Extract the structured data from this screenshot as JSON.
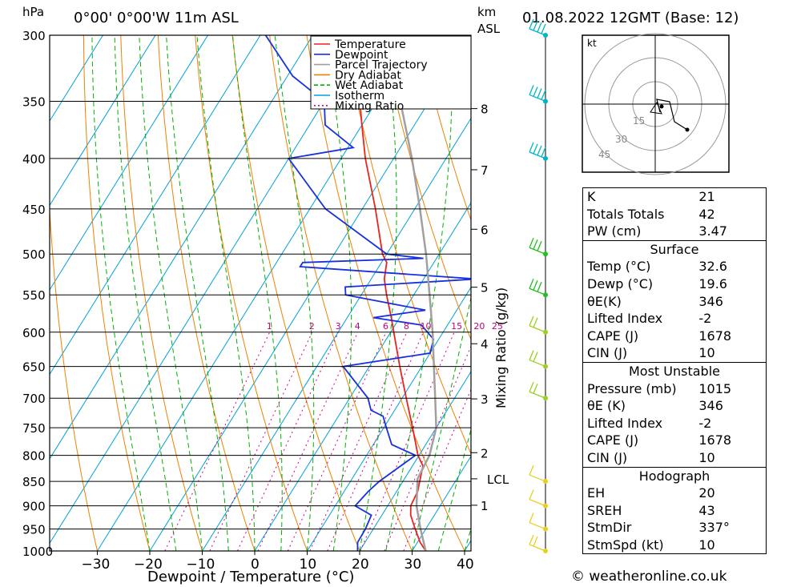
{
  "header": {
    "left_title": "0°00' 0°00'W 11m ASL",
    "right_title": "01.08.2022 12GMT (Base: 12)",
    "pressure_unit": "hPa",
    "height_unit": "km",
    "height_ref": "ASL"
  },
  "chart_data": {
    "type": "skew-t",
    "title": "0°00' 0°00'W 11m ASL",
    "xlabel": "Dewpoint / Temperature (°C)",
    "ylabel": "hPa",
    "right_ylabel": "Mixing Ratio (g/kg)",
    "xlim": [
      -40,
      40
    ],
    "pressure_levels": [
      300,
      350,
      400,
      450,
      500,
      550,
      600,
      650,
      700,
      750,
      800,
      850,
      900,
      950,
      1000
    ],
    "x_ticks": [
      -30,
      -20,
      -10,
      0,
      10,
      20,
      30,
      40
    ],
    "km_ticks": [
      {
        "km": 1,
        "label": "1"
      },
      {
        "km": 2,
        "label": "2"
      },
      {
        "km": 3,
        "label": "3"
      },
      {
        "km": 4,
        "label": "4"
      },
      {
        "km": 5,
        "label": "5"
      },
      {
        "km": 6,
        "label": "6"
      },
      {
        "km": 7,
        "label": "7"
      },
      {
        "km": 8,
        "label": "8"
      }
    ],
    "lcl_label": "LCL",
    "lcl_pressure": 845,
    "mixing_ratio_labels": [
      "1",
      "2",
      "3",
      "4",
      "6",
      "8",
      "10",
      "15",
      "20",
      "25"
    ],
    "legend": [
      {
        "name": "Temperature",
        "color": "#e8241c"
      },
      {
        "name": "Dewpoint",
        "color": "#1830e0"
      },
      {
        "name": "Parcel Trajectory",
        "color": "#a0a0a0"
      },
      {
        "name": "Dry Adiabat",
        "color": "#f08000"
      },
      {
        "name": "Wet Adiabat",
        "color": "#00b000"
      },
      {
        "name": "Isotherm",
        "color": "#00a0e0"
      },
      {
        "name": "Mixing Ratio",
        "color": "#d00090"
      }
    ],
    "series": [
      {
        "name": "Temperature",
        "points": [
          [
            1000,
            32.6
          ],
          [
            980,
            30.5
          ],
          [
            950,
            28
          ],
          [
            920,
            25.5
          ],
          [
            900,
            24.4
          ],
          [
            870,
            24
          ],
          [
            850,
            23.2
          ],
          [
            820,
            22
          ],
          [
            800,
            19.8
          ],
          [
            750,
            15.5
          ],
          [
            700,
            10.8
          ],
          [
            650,
            5.8
          ],
          [
            600,
            0.6
          ],
          [
            580,
            -1.6
          ],
          [
            550,
            -5.2
          ],
          [
            530,
            -7.5
          ],
          [
            510,
            -9
          ],
          [
            500,
            -10.8
          ],
          [
            450,
            -17.5
          ],
          [
            400,
            -25.4
          ],
          [
            370,
            -30
          ],
          [
            350,
            -33.2
          ],
          [
            330,
            -37
          ],
          [
            300,
            -42.5
          ]
        ]
      },
      {
        "name": "Dewpoint",
        "points": [
          [
            1000,
            19.6
          ],
          [
            980,
            18.6
          ],
          [
            950,
            18.5
          ],
          [
            920,
            18
          ],
          [
            900,
            13.8
          ],
          [
            870,
            14.6
          ],
          [
            850,
            15.5
          ],
          [
            800,
            19.3
          ],
          [
            780,
            13.5
          ],
          [
            750,
            10.5
          ],
          [
            730,
            8.5
          ],
          [
            720,
            5.5
          ],
          [
            700,
            3.5
          ],
          [
            650,
            -5
          ],
          [
            630,
            10
          ],
          [
            610,
            9
          ],
          [
            590,
            5
          ],
          [
            580,
            -5
          ],
          [
            570,
            4
          ],
          [
            550,
            -13
          ],
          [
            540,
            -14
          ],
          [
            530,
            10
          ],
          [
            515,
            -25
          ],
          [
            510,
            -25
          ],
          [
            505,
            -2.5
          ],
          [
            500,
            -10
          ],
          [
            450,
            -27
          ],
          [
            400,
            -40
          ],
          [
            390,
            -29
          ],
          [
            370,
            -37
          ],
          [
            350,
            -40
          ],
          [
            330,
            -49
          ],
          [
            300,
            -59
          ]
        ]
      },
      {
        "name": "Parcel Trajectory",
        "points": [
          [
            1000,
            32.6
          ],
          [
            950,
            29
          ],
          [
            900,
            25.5
          ],
          [
            845,
            22.5
          ],
          [
            800,
            22
          ],
          [
            750,
            20
          ],
          [
            700,
            16.3
          ],
          [
            650,
            12.3
          ],
          [
            600,
            8
          ],
          [
            550,
            3
          ],
          [
            500,
            -2.5
          ],
          [
            450,
            -9
          ],
          [
            400,
            -16.5
          ],
          [
            350,
            -25.5
          ],
          [
            300,
            -36
          ]
        ]
      }
    ],
    "wind_barbs": [
      {
        "pressure": 300,
        "speed_kt": 20
      },
      {
        "pressure": 350,
        "speed_kt": 20
      },
      {
        "pressure": 400,
        "speed_kt": 20
      },
      {
        "pressure": 500,
        "speed_kt": 15
      },
      {
        "pressure": 550,
        "speed_kt": 15
      },
      {
        "pressure": 600,
        "speed_kt": 10
      },
      {
        "pressure": 650,
        "speed_kt": 10
      },
      {
        "pressure": 700,
        "speed_kt": 10
      },
      {
        "pressure": 850,
        "speed_kt": 5
      },
      {
        "pressure": 900,
        "speed_kt": 5
      },
      {
        "pressure": 950,
        "speed_kt": 5
      },
      {
        "pressure": 1000,
        "speed_kt": 10
      }
    ],
    "hodograph": {
      "unit_label": "kt",
      "ring_labels": [
        "15",
        "30",
        "45"
      ]
    }
  },
  "indices": {
    "rows": [
      {
        "label": "K",
        "value": "21"
      },
      {
        "label": "Totals Totals",
        "value": "42"
      },
      {
        "label": "PW (cm)",
        "value": "3.47"
      }
    ]
  },
  "surface": {
    "title": "Surface",
    "temp_label": "Temp (°C)",
    "temp": "32.6",
    "dewp_label": "Dewp (°C)",
    "dewp": "19.6",
    "theta_label": "θE(K)",
    "theta": "346",
    "li_label": "Lifted Index",
    "li": "-2",
    "cape_label": "CAPE (J)",
    "cape": "1678",
    "cin_label": "CIN (J)",
    "cin": "10"
  },
  "most_unstable": {
    "title": "Most Unstable",
    "pressure_label": "Pressure (mb)",
    "pressure": "1015",
    "theta_label": "θE (K)",
    "theta": "346",
    "li_label": "Lifted Index",
    "li": "-2",
    "cape_label": "CAPE (J)",
    "cape": "1678",
    "cin_label": "CIN (J)",
    "cin": "10"
  },
  "hodograph_table": {
    "title": "Hodograph",
    "eh_label": "EH",
    "eh": "20",
    "sreh_label": "SREH",
    "sreh": "43",
    "stmdir_label": "StmDir",
    "stmdir": "337°",
    "stmspd_label": "StmSpd (kt)",
    "stmspd": "10"
  },
  "footer": {
    "text": "© weatheronline.co.uk"
  }
}
